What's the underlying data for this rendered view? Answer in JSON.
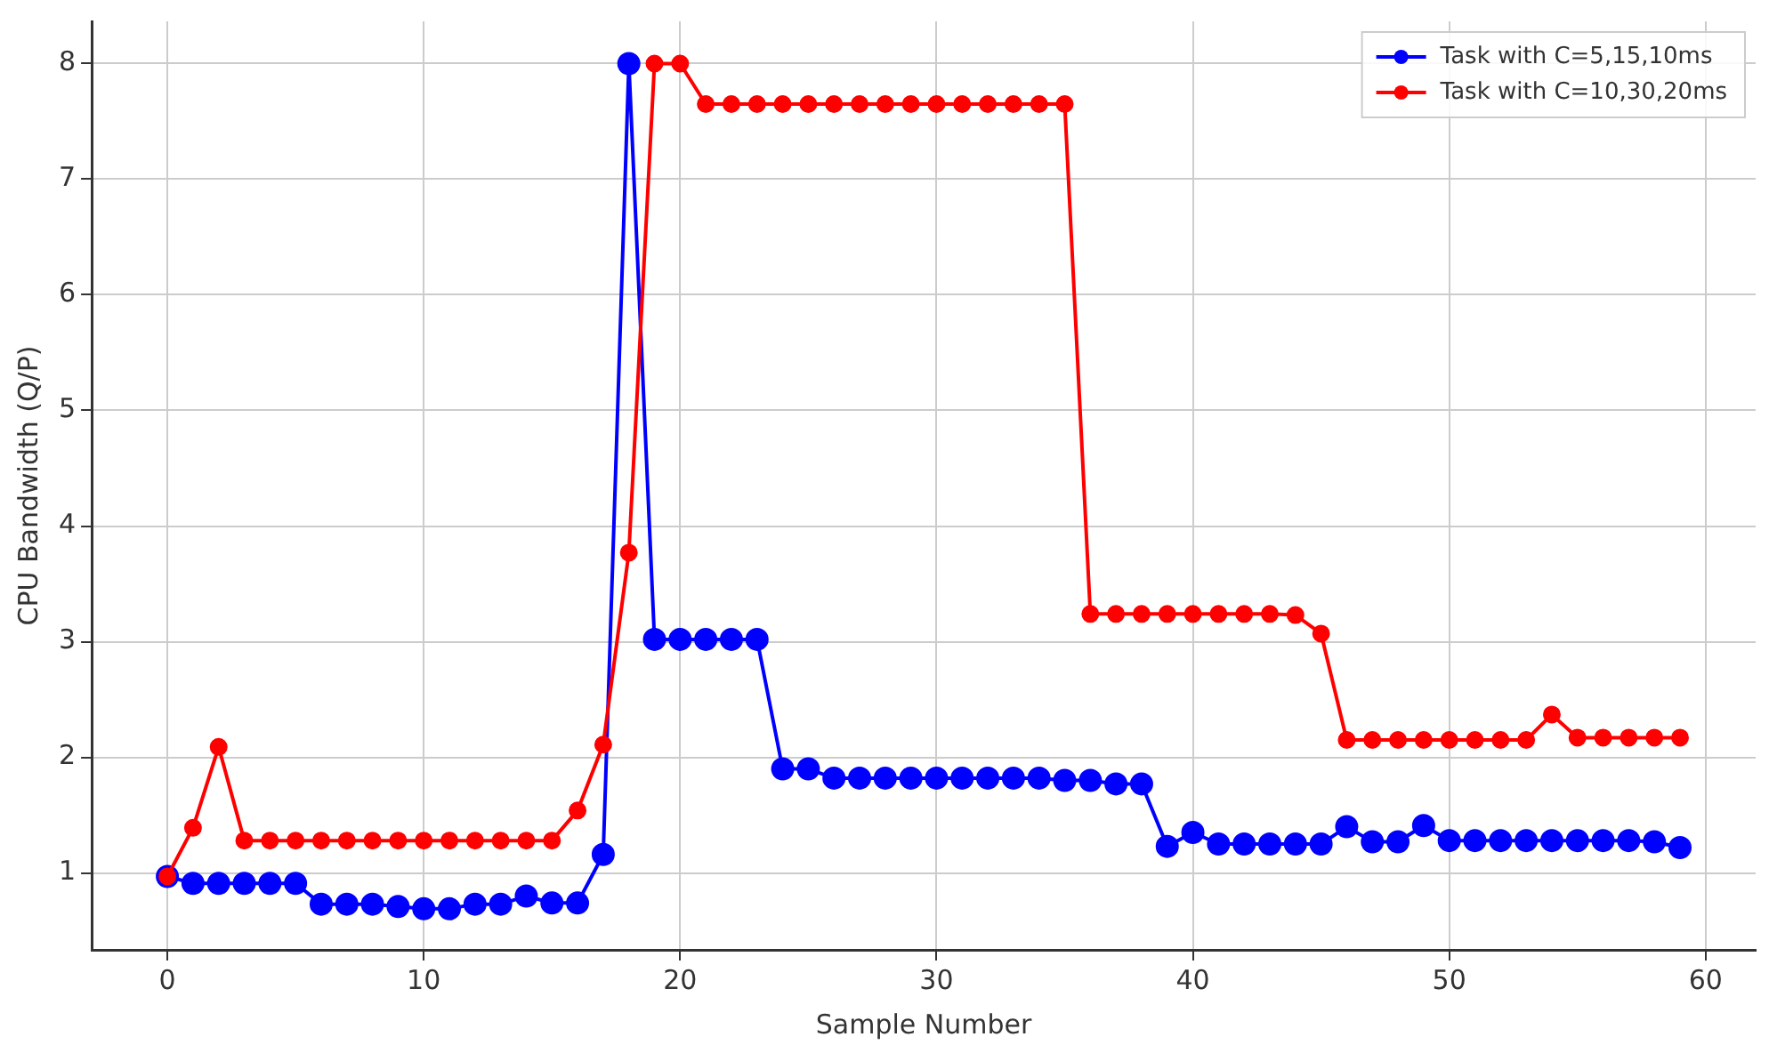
{
  "chart_data": {
    "type": "line",
    "xlabel": "Sample Number",
    "ylabel": "CPU Bandwidth (Q/P)",
    "x": [
      0,
      1,
      2,
      3,
      4,
      5,
      6,
      7,
      8,
      9,
      10,
      11,
      12,
      13,
      14,
      15,
      16,
      17,
      18,
      19,
      20,
      21,
      22,
      23,
      24,
      25,
      26,
      27,
      28,
      29,
      30,
      31,
      32,
      33,
      34,
      35,
      36,
      37,
      38,
      39,
      40,
      41,
      42,
      43,
      44,
      45,
      46,
      47,
      48,
      49,
      50,
      51,
      52,
      53,
      54,
      55,
      56,
      57,
      58,
      59
    ],
    "series": [
      {
        "name": "Task with C=5,15,10ms",
        "color": "#0000ff",
        "values": [
          0.97,
          0.91,
          0.91,
          0.91,
          0.91,
          0.91,
          0.73,
          0.73,
          0.73,
          0.71,
          0.69,
          0.69,
          0.73,
          0.73,
          0.8,
          0.74,
          0.74,
          1.16,
          8,
          3.02,
          3.02,
          3.02,
          3.02,
          3.02,
          1.9,
          1.9,
          1.82,
          1.82,
          1.82,
          1.82,
          1.82,
          1.82,
          1.82,
          1.82,
          1.82,
          1.8,
          1.8,
          1.77,
          1.77,
          1.23,
          1.35,
          1.25,
          1.25,
          1.25,
          1.25,
          1.25,
          1.4,
          1.27,
          1.27,
          1.41,
          1.28,
          1.28,
          1.28,
          1.28,
          1.28,
          1.28,
          1.28,
          1.28,
          1.27,
          1.22
        ]
      },
      {
        "name": "Task with C=10,30,20ms",
        "color": "#ff0000",
        "values": [
          0.97,
          1.39,
          2.09,
          1.28,
          1.28,
          1.28,
          1.28,
          1.28,
          1.28,
          1.28,
          1.28,
          1.28,
          1.28,
          1.28,
          1.28,
          1.28,
          1.54,
          2.11,
          3.77,
          8,
          8,
          7.65,
          7.65,
          7.65,
          7.65,
          7.65,
          7.65,
          7.65,
          7.65,
          7.65,
          7.65,
          7.65,
          7.65,
          7.65,
          7.65,
          7.65,
          3.24,
          3.24,
          3.24,
          3.24,
          3.24,
          3.24,
          3.24,
          3.24,
          3.23,
          3.07,
          2.15,
          2.15,
          2.15,
          2.15,
          2.15,
          2.15,
          2.15,
          2.15,
          2.37,
          2.17,
          2.17,
          2.17,
          2.17,
          2.17
        ]
      }
    ],
    "xlim": [
      -2.95,
      61.95
    ],
    "xticks": [
      0,
      10,
      20,
      30,
      40,
      50,
      60
    ],
    "ylim": [
      0.335,
      8.365
    ],
    "yticks": [
      1,
      2,
      3,
      4,
      5,
      6,
      7,
      8
    ],
    "grid": true,
    "legend": "top right",
    "marker": "circle",
    "line_style": "solid"
  }
}
